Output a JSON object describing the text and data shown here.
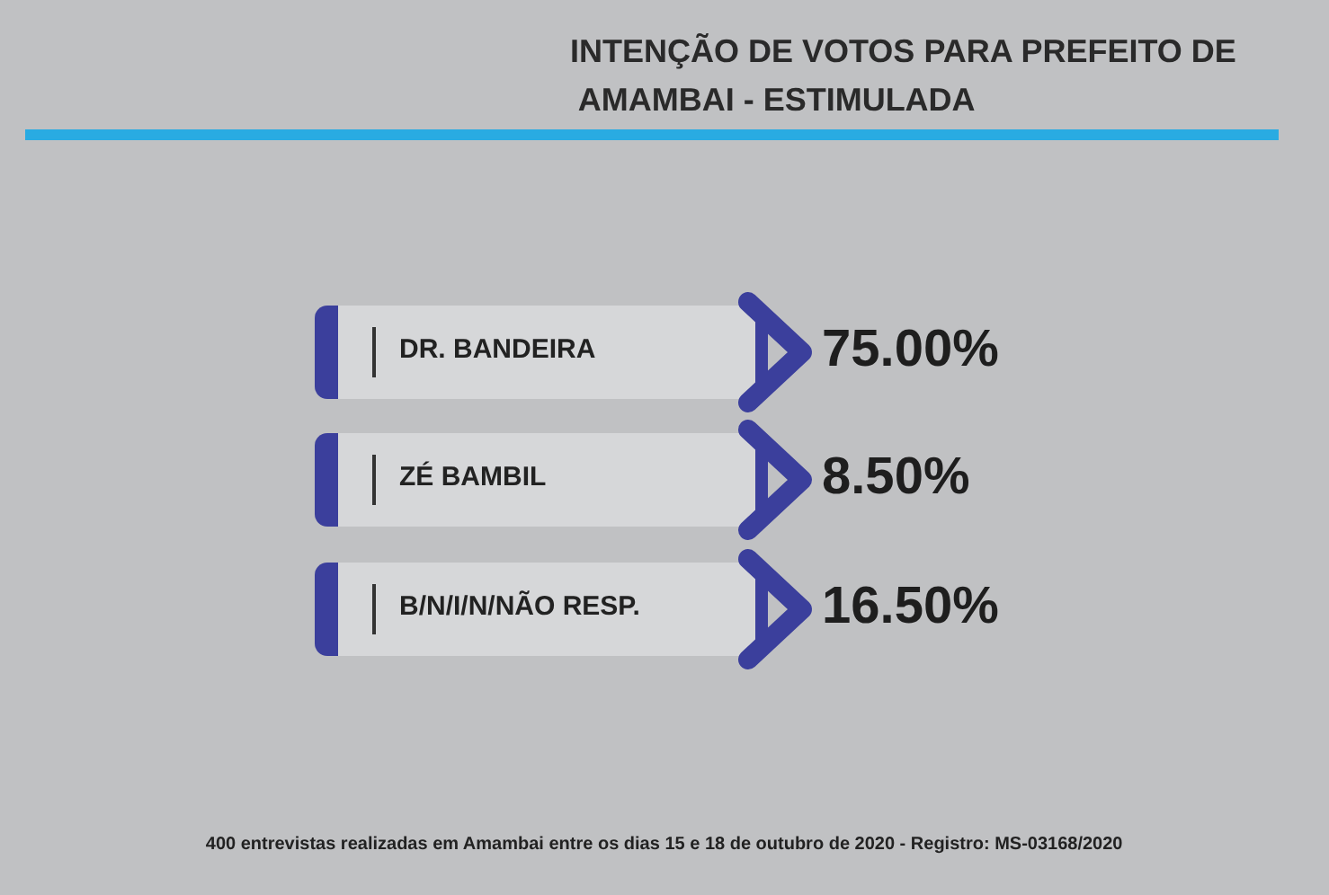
{
  "chart_data": {
    "type": "other",
    "title": "INTENÇÃO DE VOTOS PARA PREFEITO DE AMAMBAI - ESTIMULADA",
    "categories": [
      "DR. BANDEIRA",
      "ZÉ BAMBIL",
      "B/N/I/N/NÃO RESP."
    ],
    "values": [
      75,
      8.5,
      16.5
    ],
    "value_labels": [
      "75.00%",
      "8.50%",
      "16.50%"
    ],
    "color": "#3b3f9c",
    "annotations": [
      "400 entrevistas realizadas em Amambai entre os dias 15 e 18 de outubro de 2020 - Registro: MS-03168/2020"
    ]
  }
}
